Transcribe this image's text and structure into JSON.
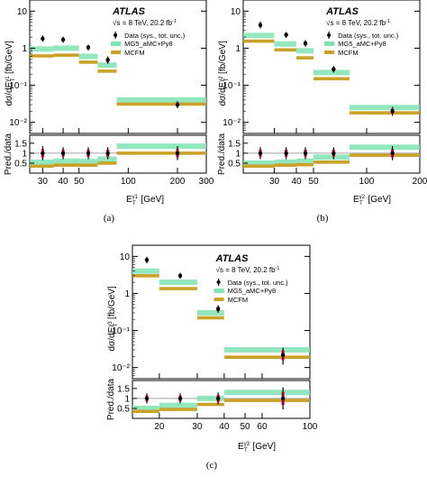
{
  "figure": {
    "panels": [
      "(a)",
      "(b)",
      "(c)"
    ]
  },
  "chart_data": [
    {
      "type": "scatter",
      "panel": "(a)",
      "experiment": "ATLAS",
      "energy_text": "√s = 8 TeV, 20.2 fb",
      "lumi_superscript": "-1",
      "ylabel": "dσ/dE",
      "ylabel_sup": "γ1",
      "ylabel_sub": "T",
      "ylabel_unit": "[fb/GeV]",
      "xlabel": "E",
      "xlabel_sup": "γ1",
      "xlabel_sub": "T",
      "xlabel_unit": "[GeV]",
      "ratio_ylabel": "Pred./data",
      "log_x": true,
      "log_y": true,
      "xlim": [
        25,
        300
      ],
      "ylim": [
        0.005,
        20
      ],
      "ratio_ylim": [
        0,
        1.9
      ],
      "x_ticks": [
        "30",
        "40",
        "50",
        "100",
        "200",
        "300"
      ],
      "y_ticks": [
        "10⁻²",
        "10⁻¹",
        "1",
        "10"
      ],
      "ratio_ticks": [
        "0.5",
        "1",
        "1.5"
      ],
      "bins": [
        [
          25,
          35
        ],
        [
          35,
          50
        ],
        [
          50,
          65
        ],
        [
          65,
          85
        ],
        [
          85,
          300
        ]
      ],
      "x_centers": [
        30,
        40,
        57,
        75,
        200
      ],
      "series": [
        {
          "name": "Data (sys., tot. unc.)",
          "values": [
            1.8,
            1.7,
            1.05,
            0.48,
            0.03
          ],
          "err_low": [
            0.3,
            0.3,
            0.18,
            0.1,
            0.006
          ],
          "err_high": [
            0.4,
            0.35,
            0.2,
            0.12,
            0.007
          ],
          "color": "#000000"
        },
        {
          "name": "MG5_aMC+Py8",
          "values": [
            0.95,
            1.0,
            0.6,
            0.35,
            0.04
          ],
          "color": "#7fe3b4"
        },
        {
          "name": "MCFM",
          "values": [
            0.62,
            0.65,
            0.42,
            0.24,
            0.031
          ],
          "color": "#c9a227"
        }
      ],
      "ratio": {
        "data_values": [
          1.0,
          1.0,
          1.0,
          1.0,
          1.0
        ],
        "data_err": [
          0.35,
          0.3,
          0.3,
          0.3,
          0.35
        ],
        "mg5": [
          0.55,
          0.6,
          0.58,
          0.7,
          1.35
        ],
        "mcfm": [
          0.35,
          0.4,
          0.4,
          0.5,
          1.0
        ]
      }
    },
    {
      "type": "scatter",
      "panel": "(b)",
      "experiment": "ATLAS",
      "energy_text": "√s = 8 TeV, 20.2 fb",
      "lumi_superscript": "-1",
      "ylabel": "dσ/dE",
      "ylabel_sup": "γ2",
      "ylabel_sub": "T",
      "ylabel_unit": "[fb/GeV]",
      "xlabel": "E",
      "xlabel_sup": "γ2",
      "xlabel_sub": "T",
      "xlabel_unit": "[GeV]",
      "ratio_ylabel": "Pred./data",
      "log_x": true,
      "log_y": true,
      "xlim": [
        20,
        200
      ],
      "ylim": [
        0.005,
        20
      ],
      "ratio_ylim": [
        0,
        1.9
      ],
      "x_ticks": [
        "30",
        "40",
        "50",
        "100",
        "200"
      ],
      "y_ticks": [
        "10⁻²",
        "10⁻¹",
        "1",
        "10"
      ],
      "ratio_ticks": [
        "0.5",
        "1",
        "1.5"
      ],
      "bins": [
        [
          20,
          30
        ],
        [
          30,
          40
        ],
        [
          40,
          50
        ],
        [
          50,
          80
        ],
        [
          80,
          200
        ]
      ],
      "x_centers": [
        25,
        35,
        45,
        65,
        140
      ],
      "series": [
        {
          "name": "Data (sys., tot. unc.)",
          "values": [
            4.2,
            2.3,
            1.35,
            0.27,
            0.02
          ],
          "err_low": [
            0.8,
            0.4,
            0.25,
            0.05,
            0.005
          ],
          "err_high": [
            1.0,
            0.45,
            0.3,
            0.06,
            0.006
          ],
          "color": "#000000"
        },
        {
          "name": "MG5_aMC+Py8",
          "values": [
            2.2,
            1.3,
            0.85,
            0.22,
            0.025
          ],
          "color": "#7fe3b4"
        },
        {
          "name": "MCFM",
          "values": [
            1.55,
            0.9,
            0.55,
            0.15,
            0.018
          ],
          "color": "#c9a227"
        }
      ],
      "ratio": {
        "data_values": [
          1.0,
          1.0,
          1.0,
          1.0,
          1.0
        ],
        "data_err": [
          0.3,
          0.3,
          0.3,
          0.3,
          0.35
        ],
        "mg5": [
          0.5,
          0.55,
          0.6,
          0.8,
          1.3
        ],
        "mcfm": [
          0.35,
          0.4,
          0.42,
          0.55,
          0.9
        ]
      }
    },
    {
      "type": "scatter",
      "panel": "(c)",
      "experiment": "ATLAS",
      "energy_text": "√s = 8 TeV, 20.2 fb",
      "lumi_superscript": "-1",
      "ylabel": "dσ/dE",
      "ylabel_sup": "γ3",
      "ylabel_sub": "T",
      "ylabel_unit": "[fb/GeV]",
      "xlabel": "E",
      "xlabel_sup": "γ3",
      "xlabel_sub": "T",
      "xlabel_unit": "[GeV]",
      "ratio_ylabel": "Pred./data",
      "log_x": true,
      "log_y": true,
      "xlim": [
        15,
        100
      ],
      "ylim": [
        0.005,
        20
      ],
      "ratio_ylim": [
        0,
        1.9
      ],
      "x_ticks": [
        "20",
        "30",
        "40",
        "50",
        "60",
        "100"
      ],
      "y_ticks": [
        "10⁻²",
        "10⁻¹",
        "1",
        "10"
      ],
      "ratio_ticks": [
        "0.5",
        "1",
        "1.5"
      ],
      "bins": [
        [
          15,
          20
        ],
        [
          20,
          30
        ],
        [
          30,
          40
        ],
        [
          40,
          100
        ]
      ],
      "x_centers": [
        17.5,
        25,
        37.5,
        75
      ],
      "series": [
        {
          "name": "Data (sys., tot. unc.)",
          "values": [
            8.0,
            3.0,
            0.38,
            0.022
          ],
          "err_low": [
            1.5,
            0.5,
            0.08,
            0.01
          ],
          "err_high": [
            1.8,
            0.6,
            0.1,
            0.012
          ],
          "color": "#000000"
        },
        {
          "name": "MG5_aMC+Py8",
          "values": [
            4.0,
            2.0,
            0.3,
            0.03
          ],
          "color": "#7fe3b4"
        },
        {
          "name": "MCFM",
          "values": [
            3.0,
            1.35,
            0.22,
            0.019
          ],
          "color": "#c9a227"
        }
      ],
      "ratio": {
        "data_values": [
          1.0,
          1.0,
          1.0,
          1.0
        ],
        "data_err": [
          0.25,
          0.25,
          0.3,
          0.55
        ],
        "mg5": [
          0.5,
          0.65,
          1.0,
          1.3
        ],
        "mcfm": [
          0.35,
          0.45,
          0.7,
          0.9
        ]
      }
    }
  ]
}
